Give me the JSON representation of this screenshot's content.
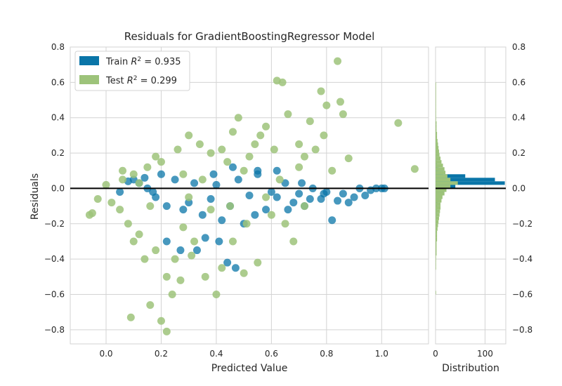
{
  "chart_data": {
    "type": "scatter",
    "title": "Residuals for GradientBoostingRegressor Model",
    "xlabel": "Predicted Value",
    "ylabel": "Residuals",
    "xlim": [
      -0.13,
      1.17
    ],
    "ylim": [
      -0.88,
      0.8
    ],
    "x_ticks": [
      "0.0",
      "0.2",
      "0.4",
      "0.6",
      "0.8",
      "1.0"
    ],
    "x_tick_values": [
      0.0,
      0.2,
      0.4,
      0.6,
      0.8,
      1.0
    ],
    "y_ticks": [
      "−0.8",
      "−0.6",
      "−0.4",
      "−0.2",
      "0.0",
      "0.2",
      "0.4",
      "0.6",
      "0.8"
    ],
    "y_tick_values": [
      -0.8,
      -0.6,
      -0.4,
      -0.2,
      0.0,
      0.2,
      0.4,
      0.6,
      0.8
    ],
    "grid": true,
    "zero_line": 0.0,
    "legend_position": "top-left",
    "colors": {
      "train": "#0a75a8",
      "test": "#9dc37a",
      "grid": "#d3d3d3",
      "zero": "#000000"
    },
    "series": [
      {
        "name": "Train R^2 = 0.935",
        "legend_prefix": "Train ",
        "legend_r2": " = 0.935",
        "points": [
          [
            0.1,
            0.05
          ],
          [
            0.12,
            0.03
          ],
          [
            0.15,
            0.0
          ],
          [
            0.18,
            -0.05
          ],
          [
            0.2,
            0.08
          ],
          [
            0.22,
            -0.1
          ],
          [
            0.25,
            0.05
          ],
          [
            0.28,
            -0.12
          ],
          [
            0.3,
            -0.08
          ],
          [
            0.32,
            0.03
          ],
          [
            0.35,
            -0.15
          ],
          [
            0.38,
            -0.06
          ],
          [
            0.4,
            0.02
          ],
          [
            0.42,
            -0.18
          ],
          [
            0.45,
            -0.1
          ],
          [
            0.48,
            0.05
          ],
          [
            0.5,
            -0.2
          ],
          [
            0.52,
            -0.04
          ],
          [
            0.55,
            0.08
          ],
          [
            0.58,
            -0.12
          ],
          [
            0.6,
            -0.02
          ],
          [
            0.62,
            -0.05
          ],
          [
            0.65,
            0.03
          ],
          [
            0.68,
            -0.08
          ],
          [
            0.7,
            -0.03
          ],
          [
            0.72,
            -0.1
          ],
          [
            0.75,
            0.0
          ],
          [
            0.78,
            -0.06
          ],
          [
            0.8,
            -0.02
          ],
          [
            0.82,
            -0.18
          ],
          [
            0.84,
            -0.07
          ],
          [
            0.86,
            -0.03
          ],
          [
            0.88,
            -0.08
          ],
          [
            0.9,
            -0.05
          ],
          [
            0.92,
            0.0
          ],
          [
            0.94,
            -0.04
          ],
          [
            0.96,
            -0.01
          ],
          [
            0.98,
            0.0
          ],
          [
            1.0,
            0.0
          ],
          [
            1.01,
            0.0
          ],
          [
            0.33,
            -0.35
          ],
          [
            0.36,
            -0.28
          ],
          [
            0.47,
            -0.45
          ],
          [
            0.27,
            -0.35
          ],
          [
            0.22,
            -0.3
          ],
          [
            0.41,
            -0.3
          ],
          [
            0.44,
            -0.42
          ],
          [
            0.54,
            -0.15
          ],
          [
            0.46,
            0.12
          ],
          [
            0.55,
            0.1
          ],
          [
            0.62,
            0.1
          ],
          [
            0.05,
            -0.02
          ],
          [
            0.08,
            0.04
          ],
          [
            0.14,
            0.06
          ],
          [
            0.17,
            -0.02
          ],
          [
            0.39,
            0.08
          ],
          [
            0.66,
            -0.12
          ],
          [
            0.74,
            -0.06
          ],
          [
            0.79,
            -0.03
          ],
          [
            0.71,
            0.03
          ]
        ]
      },
      {
        "name": "Test R^2 = 0.299",
        "legend_prefix": "Test ",
        "legend_r2": " = 0.299",
        "points": [
          [
            -0.06,
            -0.15
          ],
          [
            -0.05,
            -0.14
          ],
          [
            -0.03,
            -0.06
          ],
          [
            0.0,
            0.02
          ],
          [
            0.02,
            -0.08
          ],
          [
            0.05,
            -0.12
          ],
          [
            0.06,
            0.05
          ],
          [
            0.08,
            -0.2
          ],
          [
            0.1,
            -0.3
          ],
          [
            0.1,
            0.08
          ],
          [
            0.12,
            -0.26
          ],
          [
            0.14,
            -0.4
          ],
          [
            0.15,
            0.12
          ],
          [
            0.16,
            -0.1
          ],
          [
            0.18,
            -0.35
          ],
          [
            0.2,
            0.15
          ],
          [
            0.22,
            -0.5
          ],
          [
            0.24,
            -0.6
          ],
          [
            0.2,
            -0.75
          ],
          [
            0.22,
            -0.81
          ],
          [
            0.16,
            -0.66
          ],
          [
            0.09,
            -0.73
          ],
          [
            0.25,
            -0.4
          ],
          [
            0.26,
            0.22
          ],
          [
            0.28,
            -0.22
          ],
          [
            0.3,
            0.3
          ],
          [
            0.32,
            -0.3
          ],
          [
            0.34,
            0.25
          ],
          [
            0.36,
            -0.5
          ],
          [
            0.38,
            0.2
          ],
          [
            0.4,
            -0.6
          ],
          [
            0.42,
            -0.45
          ],
          [
            0.44,
            0.15
          ],
          [
            0.46,
            -0.3
          ],
          [
            0.48,
            0.4
          ],
          [
            0.5,
            -0.48
          ],
          [
            0.52,
            0.18
          ],
          [
            0.54,
            0.25
          ],
          [
            0.55,
            -0.42
          ],
          [
            0.56,
            0.3
          ],
          [
            0.58,
            0.35
          ],
          [
            0.6,
            -0.15
          ],
          [
            0.61,
            0.22
          ],
          [
            0.62,
            0.61
          ],
          [
            0.64,
            0.6
          ],
          [
            0.66,
            0.42
          ],
          [
            0.68,
            -0.3
          ],
          [
            0.7,
            0.25
          ],
          [
            0.72,
            0.18
          ],
          [
            0.74,
            0.38
          ],
          [
            0.78,
            0.55
          ],
          [
            0.79,
            0.3
          ],
          [
            0.8,
            0.47
          ],
          [
            0.82,
            0.1
          ],
          [
            0.84,
            0.72
          ],
          [
            0.85,
            0.49
          ],
          [
            0.88,
            0.17
          ],
          [
            1.06,
            0.37
          ],
          [
            1.12,
            0.11
          ],
          [
            0.3,
            -0.05
          ],
          [
            0.35,
            0.05
          ],
          [
            0.45,
            -0.1
          ],
          [
            0.5,
            0.1
          ],
          [
            0.65,
            -0.2
          ],
          [
            0.7,
            0.12
          ],
          [
            0.12,
            0.03
          ],
          [
            0.06,
            0.1
          ],
          [
            0.18,
            0.18
          ],
          [
            0.28,
            0.08
          ],
          [
            0.38,
            -0.12
          ],
          [
            0.42,
            0.22
          ],
          [
            0.58,
            -0.05
          ],
          [
            0.31,
            -0.38
          ],
          [
            0.27,
            -0.52
          ],
          [
            0.46,
            0.32
          ],
          [
            0.51,
            -0.2
          ],
          [
            0.63,
            0.05
          ],
          [
            0.72,
            -0.1
          ],
          [
            0.76,
            0.22
          ],
          [
            0.86,
            0.42
          ]
        ]
      }
    ],
    "histogram": {
      "xlabel": "Distribution",
      "x_ticks": [
        "0",
        "100"
      ],
      "x_tick_values": [
        0,
        100
      ],
      "xlim": [
        0,
        142
      ],
      "ylim": [
        -0.88,
        0.8
      ],
      "y_ticks": [
        "−0.8",
        "−0.6",
        "−0.4",
        "−0.2",
        "0.0",
        "0.2",
        "0.4",
        "0.6",
        "0.8"
      ],
      "bin_width": 0.02,
      "bins_start": -0.6,
      "train_counts": [
        0,
        0,
        0,
        0,
        0,
        0,
        0,
        0,
        0,
        0,
        0,
        0,
        0,
        0,
        0,
        0,
        0,
        0,
        0,
        0,
        1,
        1,
        2,
        2,
        3,
        4,
        6,
        8,
        12,
        16,
        40,
        140,
        120,
        60,
        15,
        6,
        3,
        1,
        1,
        0,
        0,
        0,
        0,
        0,
        0,
        0,
        0,
        0,
        0,
        0,
        0,
        0,
        0,
        0,
        0,
        0,
        0,
        0,
        0,
        0,
        0,
        0,
        0,
        0,
        0
      ],
      "test_counts": [
        1,
        0,
        0,
        0,
        0,
        0,
        0,
        1,
        1,
        1,
        1,
        2,
        2,
        2,
        2,
        3,
        3,
        3,
        4,
        5,
        6,
        7,
        8,
        9,
        10,
        10,
        12,
        14,
        18,
        22,
        30,
        45,
        30,
        24,
        20,
        18,
        15,
        12,
        10,
        8,
        7,
        6,
        5,
        4,
        3,
        3,
        2,
        2,
        2,
        1,
        1,
        1,
        1,
        1,
        1,
        1,
        1,
        1,
        1,
        1,
        0,
        0,
        0,
        0,
        0
      ]
    }
  }
}
